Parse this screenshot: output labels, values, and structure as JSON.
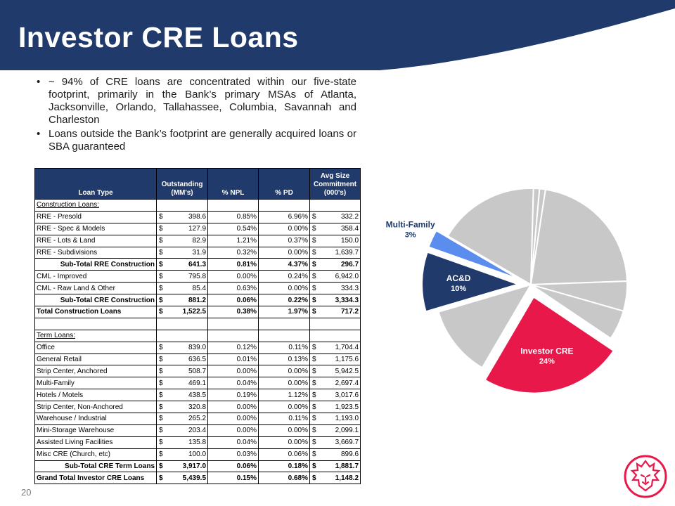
{
  "slide": {
    "title": "Investor CRE Loans",
    "page_number": "20",
    "bullets": [
      "~ 94% of CRE loans are concentrated within our five-state footprint, primarily in the Bank’s primary MSAs of Atlanta, Jacksonville, Orlando, Tallahassee, Columbia, Savannah and Charleston",
      "Loans outside the Bank’s footprint are generally acquired loans or SBA guaranteed"
    ],
    "bullet_char": "•"
  },
  "colors": {
    "navy": "#1f3a6b",
    "crimson": "#e8194a",
    "light_blue": "#5b8def",
    "grey": "#c8c8c8"
  },
  "table": {
    "headers": {
      "loan_type": "Loan Type",
      "outstanding": "Outstanding\n(MM's)",
      "npl": "% NPL",
      "pd": "% PD",
      "avg_size": "Avg Size\nCommitment\n(000's)"
    },
    "currency": "$",
    "construction_heading": "Construction Loans:",
    "construction_rows": [
      {
        "type": "RRE - Presold",
        "outstanding": "398.6",
        "npl": "0.85%",
        "pd": "6.96%",
        "avg": "332.2"
      },
      {
        "type": "RRE - Spec & Models",
        "outstanding": "127.9",
        "npl": "0.54%",
        "pd": "0.00%",
        "avg": "358.4"
      },
      {
        "type": "RRE - Lots & Land",
        "outstanding": "82.9",
        "npl": "1.21%",
        "pd": "0.37%",
        "avg": "150.0"
      },
      {
        "type": "RRE - Subdivisions",
        "outstanding": "31.9",
        "npl": "0.32%",
        "pd": "0.00%",
        "avg": "1,639.7"
      }
    ],
    "subtotal_rre": {
      "type": "Sub-Total RRE Construction",
      "outstanding": "641.3",
      "npl": "0.81%",
      "pd": "4.37%",
      "avg": "296.7"
    },
    "cml_rows": [
      {
        "type": "CML - Improved",
        "outstanding": "795.8",
        "npl": "0.00%",
        "pd": "0.24%",
        "avg": "6,942.0"
      },
      {
        "type": "CML - Raw Land & Other",
        "outstanding": "85.4",
        "npl": "0.63%",
        "pd": "0.00%",
        "avg": "334.3"
      }
    ],
    "subtotal_cre_construction": {
      "type": "Sub-Total CRE Construction",
      "outstanding": "881.2",
      "npl": "0.06%",
      "pd": "0.22%",
      "avg": "3,334.3"
    },
    "total_construction": {
      "type": "Total Construction Loans",
      "outstanding": "1,522.5",
      "npl": "0.38%",
      "pd": "1.97%",
      "avg": "717.2"
    },
    "term_heading": "Term Loans:",
    "term_rows": [
      {
        "type": "Office",
        "outstanding": "839.0",
        "npl": "0.12%",
        "pd": "0.11%",
        "avg": "1,704.4"
      },
      {
        "type": "General Retail",
        "outstanding": "636.5",
        "npl": "0.01%",
        "pd": "0.13%",
        "avg": "1,175.6"
      },
      {
        "type": "Strip Center, Anchored",
        "outstanding": "508.7",
        "npl": "0.00%",
        "pd": "0.00%",
        "avg": "5,942.5"
      },
      {
        "type": "Multi-Family",
        "outstanding": "469.1",
        "npl": "0.04%",
        "pd": "0.00%",
        "avg": "2,697.4"
      },
      {
        "type": "Hotels / Motels",
        "outstanding": "438.5",
        "npl": "0.19%",
        "pd": "1.12%",
        "avg": "3,017.6"
      },
      {
        "type": "Strip Center, Non-Anchored",
        "outstanding": "320.8",
        "npl": "0.00%",
        "pd": "0.00%",
        "avg": "1,923.5"
      },
      {
        "type": "Warehouse / Industrial",
        "outstanding": "265.2",
        "npl": "0.00%",
        "pd": "0.11%",
        "avg": "1,193.0"
      },
      {
        "type": "Mini-Storage Warehouse",
        "outstanding": "203.4",
        "npl": "0.00%",
        "pd": "0.00%",
        "avg": "2,099.1"
      },
      {
        "type": "Assisted Living Facilities",
        "outstanding": "135.8",
        "npl": "0.04%",
        "pd": "0.00%",
        "avg": "3,669.7"
      },
      {
        "type": "Misc CRE (Church, etc)",
        "outstanding": "100.0",
        "npl": "0.03%",
        "pd": "0.06%",
        "avg": "899.6"
      }
    ],
    "subtotal_term": {
      "type": "Sub-Total CRE Term Loans",
      "outstanding": "3,917.0",
      "npl": "0.06%",
      "pd": "0.18%",
      "avg": "1,881.7"
    },
    "grand_total": {
      "type": "Grand Total Investor CRE Loans",
      "outstanding": "5,439.5",
      "npl": "0.15%",
      "pd": "0.68%",
      "avg": "1,148.2"
    }
  },
  "chart_data": {
    "type": "pie",
    "title": "",
    "slices": [
      {
        "label": "",
        "value": 1,
        "color": "#c8c8c8"
      },
      {
        "label": "",
        "value": 22,
        "color": "#c8c8c8"
      },
      {
        "label": "",
        "value": 5,
        "color": "#c8c8c8"
      },
      {
        "label": "",
        "value": 5,
        "color": "#c8c8c8"
      },
      {
        "label": "Investor CRE",
        "pct_label": "24%",
        "value": 24,
        "color": "#e8194a",
        "exploded": true
      },
      {
        "label": "",
        "value": 12,
        "color": "#c8c8c8"
      },
      {
        "label": "AC&D",
        "pct_label": "10%",
        "value": 10,
        "color": "#1f3a6b",
        "exploded": true
      },
      {
        "label": "Multi-Family",
        "pct_label": "3%",
        "value": 3,
        "color": "#5b8def",
        "exploded": true
      },
      {
        "label": "",
        "value": 17,
        "color": "#c8c8c8"
      },
      {
        "label": "",
        "value": 1,
        "color": "#c8c8c8"
      }
    ]
  }
}
